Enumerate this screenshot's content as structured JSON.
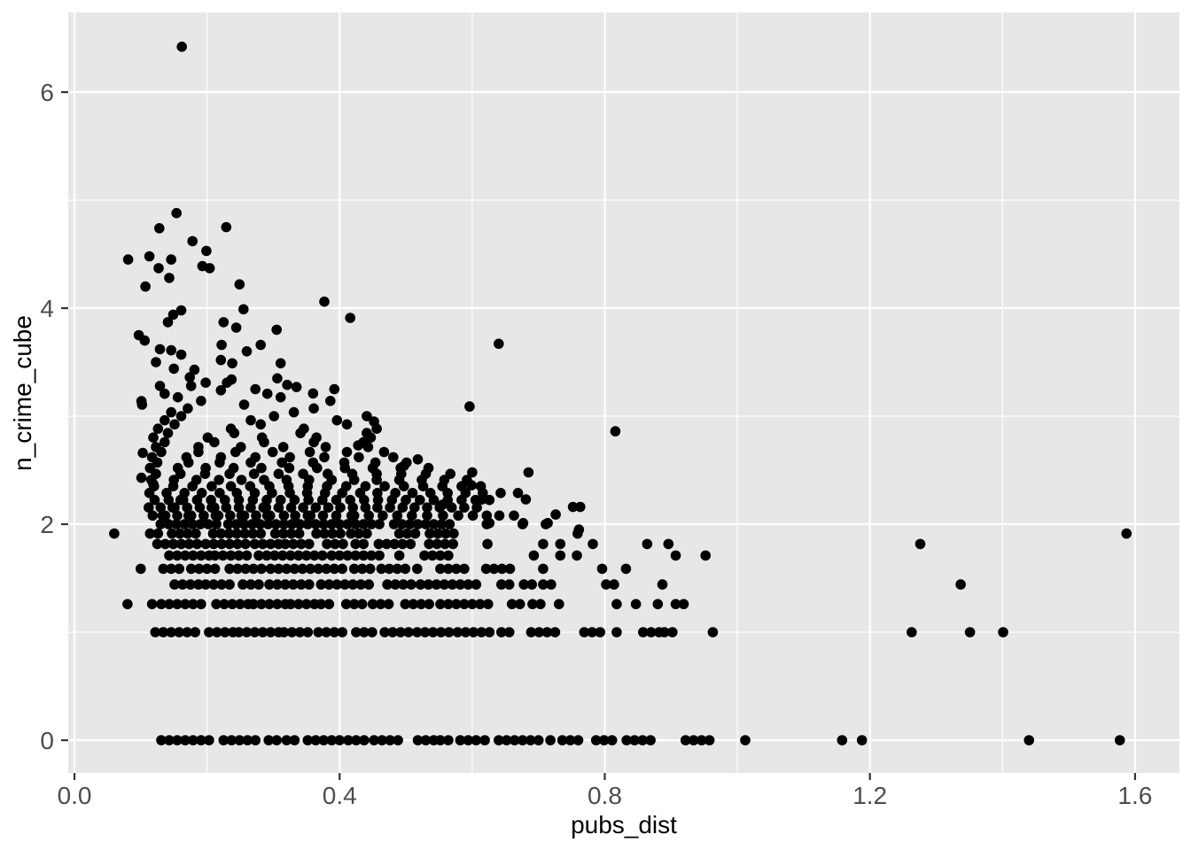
{
  "chart_data": {
    "type": "scatter",
    "title": "",
    "xlabel": "pubs_dist",
    "ylabel": "n_crime_cube",
    "xlim": [
      -0.0094,
      1.667
    ],
    "ylim": [
      -0.303,
      6.738
    ],
    "x_major_ticks": [
      0.0,
      0.4,
      0.8,
      1.2,
      1.6
    ],
    "x_tick_labels": [
      "0.0",
      "0.4",
      "0.8",
      "1.2",
      "1.6"
    ],
    "x_minor_ticks": [
      0.2,
      0.6,
      1.0,
      1.4
    ],
    "y_major_ticks": [
      0,
      2,
      4,
      6
    ],
    "y_tick_labels": [
      "0",
      "2",
      "4",
      "6"
    ],
    "y_minor_ticks": [
      1,
      3,
      5
    ],
    "legend": "none",
    "grid": "on",
    "point_radius_px": 5.8,
    "row_spacing": 0.012,
    "colors": {
      "panel_bg": "#E7E7E7",
      "grid_major": "#FFFFFF",
      "grid_minor": "#FFFFFF",
      "point": "#000000",
      "tick_mark": "#333333",
      "tick_label": "#4D4D4D",
      "axis_title": "#000000"
    },
    "rows": [
      {
        "y": 0,
        "segments": [
          [
            0.131,
            0.16
          ],
          [
            0.167,
            0.203
          ],
          [
            0.225,
            0.283
          ],
          [
            0.293,
            0.306
          ],
          [
            0.32,
            0.334
          ],
          [
            0.352,
            0.405
          ],
          [
            0.413,
            0.446
          ],
          [
            0.452,
            0.492
          ],
          [
            0.518,
            0.545
          ],
          [
            0.552,
            0.574
          ],
          [
            0.582,
            0.607
          ],
          [
            0.64,
            0.711
          ],
          [
            0.736,
            0.771
          ],
          [
            0.787,
            0.818
          ],
          [
            0.833,
            0.876
          ],
          [
            0.922,
            0.934
          ],
          [
            0.946,
            0.958
          ]
        ],
        "xs": [
          0.619,
          0.718,
          1.012,
          1.158,
          1.188,
          1.44,
          1.577
        ]
      },
      {
        "y": 1.0,
        "segments": [
          [
            0.122,
            0.15
          ],
          [
            0.158,
            0.191
          ],
          [
            0.203,
            0.24
          ],
          [
            0.248,
            0.312
          ],
          [
            0.316,
            0.36
          ],
          [
            0.368,
            0.414
          ],
          [
            0.425,
            0.46
          ],
          [
            0.468,
            0.506
          ],
          [
            0.517,
            0.574
          ],
          [
            0.578,
            0.631
          ],
          [
            0.644,
            0.664
          ],
          [
            0.689,
            0.729
          ],
          [
            0.769,
            0.798
          ],
          [
            0.858,
            0.882
          ],
          [
            0.89,
            0.907
          ]
        ],
        "xs": [
          0.818,
          0.963,
          1.263,
          1.351,
          1.401
        ]
      },
      {
        "y": 1.26,
        "segments": [
          [
            0.131,
            0.191
          ],
          [
            0.214,
            0.262
          ],
          [
            0.27,
            0.318
          ],
          [
            0.326,
            0.364
          ],
          [
            0.372,
            0.392
          ],
          [
            0.41,
            0.442
          ],
          [
            0.45,
            0.477
          ],
          [
            0.499,
            0.545
          ],
          [
            0.552,
            0.627
          ],
          [
            0.66,
            0.68
          ],
          [
            0.691,
            0.709
          ],
          [
            0.907,
            0.929
          ]
        ],
        "xs": [
          0.08,
          0.117,
          0.731,
          0.818,
          0.847,
          0.88
        ]
      },
      {
        "y": 1.442,
        "segments": [
          [
            0.151,
            0.19
          ],
          [
            0.198,
            0.24
          ],
          [
            0.254,
            0.283
          ],
          [
            0.294,
            0.361
          ],
          [
            0.372,
            0.454
          ],
          [
            0.472,
            0.514
          ],
          [
            0.522,
            0.606
          ],
          [
            0.644,
            0.662
          ],
          [
            0.678,
            0.693
          ],
          [
            0.707,
            0.722
          ],
          [
            0.802,
            0.822
          ]
        ],
        "xs": [
          0.887,
          1.337
        ]
      },
      {
        "y": 1.587,
        "segments": [
          [
            0.134,
            0.168
          ],
          [
            0.176,
            0.218
          ],
          [
            0.234,
            0.29
          ],
          [
            0.296,
            0.36
          ],
          [
            0.368,
            0.415
          ],
          [
            0.422,
            0.45
          ],
          [
            0.463,
            0.503
          ],
          [
            0.552,
            0.595
          ],
          [
            0.621,
            0.662
          ]
        ],
        "xs": [
          0.1,
          0.517,
          0.707,
          0.796,
          0.832
        ]
      },
      {
        "y": 1.71,
        "segments": [
          [
            0.143,
            0.205
          ],
          [
            0.212,
            0.27
          ],
          [
            0.278,
            0.33
          ],
          [
            0.338,
            0.379
          ],
          [
            0.388,
            0.428
          ],
          [
            0.436,
            0.463
          ],
          [
            0.528,
            0.574
          ]
        ],
        "xs": [
          0.49,
          0.693,
          0.733,
          0.758,
          0.907,
          0.952
        ]
      },
      {
        "y": 1.817,
        "segments": [
          [
            0.125,
            0.187
          ],
          [
            0.198,
            0.264
          ],
          [
            0.272,
            0.31
          ],
          [
            0.318,
            0.356
          ],
          [
            0.381,
            0.412
          ],
          [
            0.424,
            0.436
          ],
          [
            0.459,
            0.517
          ],
          [
            0.535,
            0.574
          ]
        ],
        "xs": [
          0.623,
          0.707,
          0.733,
          0.782,
          0.864,
          0.896,
          1.276
        ]
      },
      {
        "y": 1.913,
        "segments": [
          [
            0.114,
            0.136
          ],
          [
            0.147,
            0.191
          ],
          [
            0.209,
            0.285
          ],
          [
            0.303,
            0.347
          ],
          [
            0.365,
            0.401
          ],
          [
            0.417,
            0.446
          ],
          [
            0.49,
            0.514
          ],
          [
            0.536,
            0.574
          ]
        ],
        "xs": [
          0.06,
          0.759,
          1.587
        ]
      },
      {
        "y": 2.0,
        "segments": [
          [
            0.13,
            0.22
          ],
          [
            0.232,
            0.34
          ],
          [
            0.352,
            0.47
          ],
          [
            0.482,
            0.57
          ]
        ],
        "xs": [
          0.622,
          0.676,
          0.711
        ]
      },
      {
        "y": 2.08,
        "xs": [
          0.118,
          0.133,
          0.137,
          0.155,
          0.172,
          0.176,
          0.195,
          0.213,
          0.217,
          0.235,
          0.252,
          0.256,
          0.274,
          0.291,
          0.295,
          0.316,
          0.333,
          0.352,
          0.356,
          0.375,
          0.395,
          0.418,
          0.422,
          0.444,
          0.465,
          0.487,
          0.509,
          0.532,
          0.556,
          0.579,
          0.601,
          0.622,
          0.641,
          0.663
        ]
      },
      {
        "y": 2.154,
        "xs": [
          0.112,
          0.13,
          0.148,
          0.151,
          0.17,
          0.189,
          0.207,
          0.211,
          0.229,
          0.248,
          0.266,
          0.285,
          0.289,
          0.308,
          0.327,
          0.345,
          0.364,
          0.383,
          0.401,
          0.42,
          0.439,
          0.457,
          0.476,
          0.495,
          0.513,
          0.532,
          0.551,
          0.569,
          0.588,
          0.607
        ]
      },
      {
        "y": 2.224,
        "xs": [
          0.121,
          0.142,
          0.16,
          0.164,
          0.185,
          0.206,
          0.227,
          0.248,
          0.269,
          0.29,
          0.311,
          0.332,
          0.353,
          0.374,
          0.395,
          0.416,
          0.437,
          0.458,
          0.479,
          0.5,
          0.521,
          0.542,
          0.563,
          0.584,
          0.605,
          0.626
        ]
      },
      {
        "y": 2.289,
        "xs": [
          0.113,
          0.139,
          0.166,
          0.192,
          0.219,
          0.245,
          0.272,
          0.298,
          0.325,
          0.351,
          0.378,
          0.404,
          0.431,
          0.457,
          0.484,
          0.51,
          0.537,
          0.563,
          0.59,
          0.616,
          0.643,
          0.669
        ]
      },
      {
        "y": 2.351,
        "xs": [
          0.12,
          0.149,
          0.178,
          0.207,
          0.236,
          0.265,
          0.294,
          0.323,
          0.352,
          0.381,
          0.41,
          0.439,
          0.468,
          0.497,
          0.526,
          0.555,
          0.584,
          0.613
        ]
      },
      {
        "y": 2.41,
        "xs": [
          0.116,
          0.15,
          0.184,
          0.218,
          0.252,
          0.286,
          0.32,
          0.354,
          0.388,
          0.422,
          0.456,
          0.49,
          0.524,
          0.558,
          0.592
        ]
      },
      {
        "y": 2.466,
        "xs": [
          0.123,
          0.16,
          0.197,
          0.234,
          0.271,
          0.308,
          0.345,
          0.382,
          0.419,
          0.456,
          0.493,
          0.53,
          0.567
        ]
      },
      {
        "y": 2.52,
        "xs": [
          0.114,
          0.156,
          0.198,
          0.24,
          0.282,
          0.324,
          0.366,
          0.408,
          0.45,
          0.492,
          0.534
        ]
      },
      {
        "y": 2.571,
        "xs": [
          0.125,
          0.172,
          0.219,
          0.266,
          0.313,
          0.36,
          0.407,
          0.454,
          0.501
        ]
      },
      {
        "y": 2.62,
        "xs": [
          0.117,
          0.169,
          0.221,
          0.273,
          0.325,
          0.377,
          0.429,
          0.481
        ]
      },
      {
        "y": 2.668,
        "xs": [
          0.131,
          0.187,
          0.243,
          0.299,
          0.355,
          0.411,
          0.467
        ]
      },
      {
        "y": 2.714,
        "xs": [
          0.123,
          0.187,
          0.251,
          0.315,
          0.379,
          0.443
        ]
      },
      {
        "y": 2.759,
        "xs": [
          0.136,
          0.211,
          0.286,
          0.361,
          0.436
        ]
      },
      {
        "y": 2.802,
        "xs": [
          0.119,
          0.201,
          0.283,
          0.365,
          0.447
        ]
      },
      {
        "y": 2.844,
        "xs": [
          0.141,
          0.241,
          0.341,
          0.441
        ]
      },
      {
        "y": 2.884,
        "xs": [
          0.126,
          0.236,
          0.346,
          0.456
        ]
      },
      {
        "y": 2.924,
        "xs": [
          0.151,
          0.281,
          0.411
        ]
      },
      {
        "y": 2.962,
        "xs": [
          0.136,
          0.266,
          0.396
        ]
      },
      {
        "y": 3.0,
        "xs": [
          0.161,
          0.301,
          0.441
        ]
      },
      {
        "y": 3.036,
        "xs": [
          0.146,
          0.331
        ]
      },
      {
        "y": 3.072,
        "xs": [
          0.171,
          0.361
        ]
      },
      {
        "y": 3.107,
        "xs": [
          0.102,
          0.256
        ]
      },
      {
        "y": 3.141,
        "xs": [
          0.191,
          0.386
        ]
      },
      {
        "y": 3.175,
        "xs": [
          0.156,
          0.311
        ]
      },
      {
        "y": 3.208,
        "xs": [
          0.136,
          0.291
        ]
      },
      {
        "y": 3.24,
        "xs": [
          0.221
        ]
      }
    ],
    "points": [
      [
        0.162,
        6.42
      ],
      [
        0.154,
        4.88
      ],
      [
        0.128,
        4.74
      ],
      [
        0.229,
        4.75
      ],
      [
        0.178,
        4.62
      ],
      [
        0.199,
        4.53
      ],
      [
        0.081,
        4.45
      ],
      [
        0.113,
        4.48
      ],
      [
        0.146,
        4.45
      ],
      [
        0.127,
        4.37
      ],
      [
        0.143,
        4.28
      ],
      [
        0.107,
        4.2
      ],
      [
        0.193,
        4.39
      ],
      [
        0.204,
        4.37
      ],
      [
        0.249,
        4.22
      ],
      [
        0.377,
        4.06
      ],
      [
        0.416,
        3.91
      ],
      [
        0.255,
        3.99
      ],
      [
        0.161,
        3.98
      ],
      [
        0.149,
        3.94
      ],
      [
        0.141,
        3.87
      ],
      [
        0.225,
        3.87
      ],
      [
        0.244,
        3.82
      ],
      [
        0.305,
        3.8
      ],
      [
        0.097,
        3.75
      ],
      [
        0.106,
        3.7
      ],
      [
        0.64,
        3.67
      ],
      [
        0.129,
        3.62
      ],
      [
        0.146,
        3.61
      ],
      [
        0.222,
        3.66
      ],
      [
        0.26,
        3.6
      ],
      [
        0.281,
        3.66
      ],
      [
        0.161,
        3.57
      ],
      [
        0.123,
        3.5
      ],
      [
        0.221,
        3.52
      ],
      [
        0.238,
        3.49
      ],
      [
        0.311,
        3.49
      ],
      [
        0.15,
        3.44
      ],
      [
        0.181,
        3.43
      ],
      [
        0.174,
        3.36
      ],
      [
        0.237,
        3.34
      ],
      [
        0.306,
        3.35
      ],
      [
        0.23,
        3.31
      ],
      [
        0.198,
        3.31
      ],
      [
        0.129,
        3.28
      ],
      [
        0.176,
        3.28
      ],
      [
        0.273,
        3.25
      ],
      [
        0.321,
        3.29
      ],
      [
        0.335,
        3.27
      ],
      [
        0.392,
        3.25
      ],
      [
        0.36,
        3.21
      ],
      [
        0.101,
        3.14
      ],
      [
        0.596,
        3.09
      ],
      [
        0.816,
        2.86
      ],
      [
        0.452,
        2.95
      ],
      [
        0.428,
        2.73
      ],
      [
        0.518,
        2.6
      ],
      [
        0.497,
        2.54
      ],
      [
        0.103,
        2.66
      ],
      [
        0.101,
        2.43
      ],
      [
        0.119,
        2.37
      ],
      [
        0.555,
        2.18
      ],
      [
        0.599,
        2.36
      ],
      [
        0.615,
        2.23
      ],
      [
        0.6,
        2.48
      ],
      [
        0.685,
        2.48
      ],
      [
        0.681,
        2.23
      ],
      [
        0.726,
        2.09
      ],
      [
        0.752,
        2.16
      ],
      [
        0.763,
        2.16
      ],
      [
        0.761,
        1.95
      ],
      [
        0.626,
        2.01
      ],
      [
        0.677,
        2.01
      ],
      [
        0.714,
        2.01
      ]
    ]
  }
}
